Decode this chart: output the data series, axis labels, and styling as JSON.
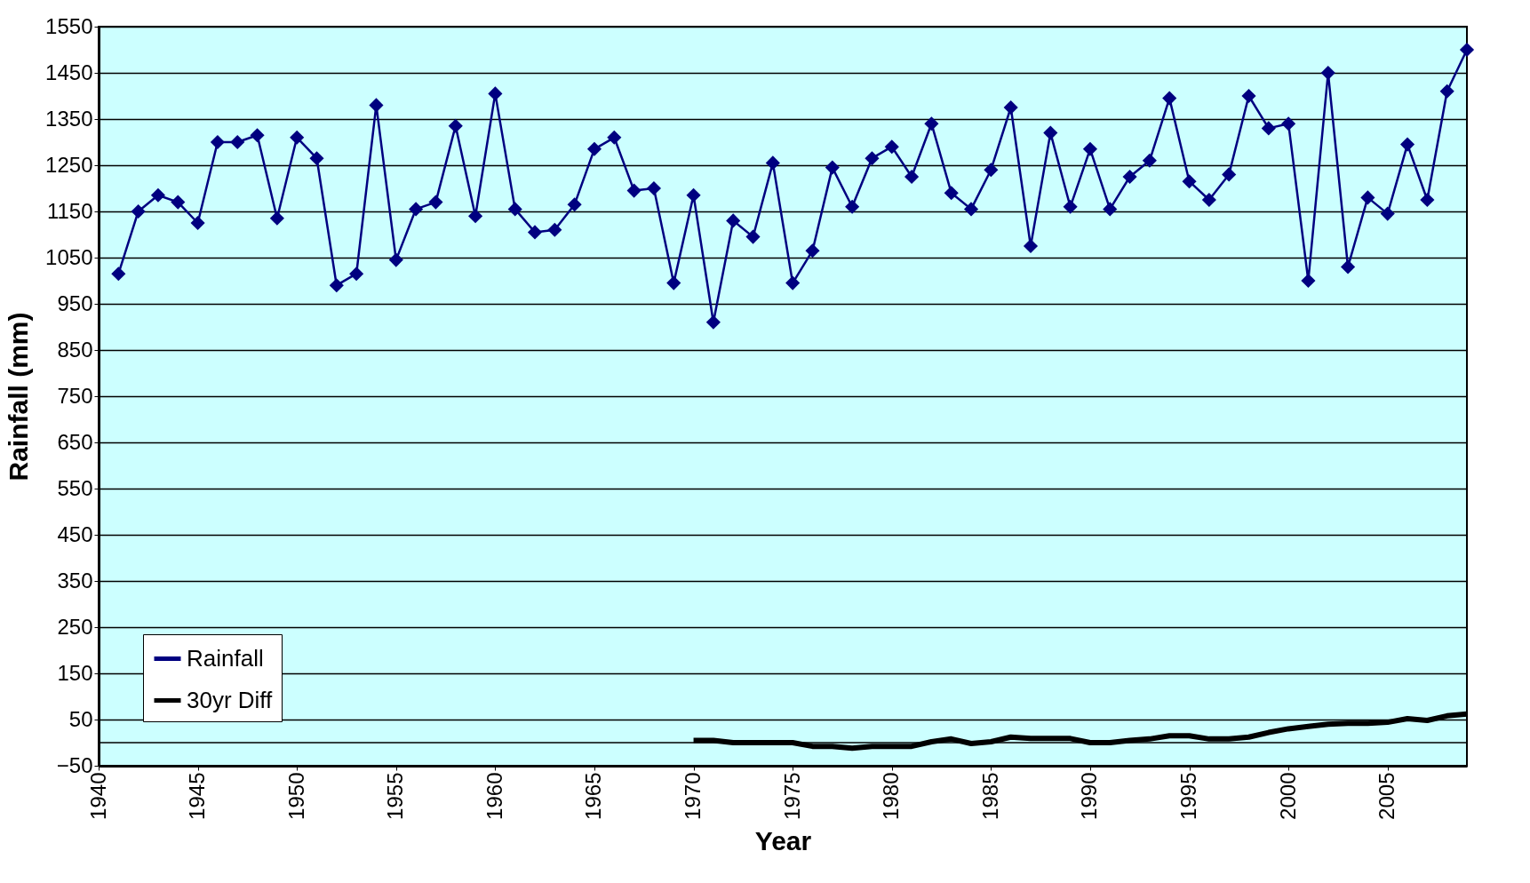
{
  "chart_data": {
    "type": "line",
    "xlabel": "Year",
    "ylabel": "Rainfall (mm)",
    "xlim": [
      1940,
      2009
    ],
    "xticks": [
      1940,
      1945,
      1950,
      1955,
      1960,
      1965,
      1970,
      1975,
      1980,
      1985,
      1990,
      1995,
      2000,
      2005
    ],
    "ylim": [
      -50,
      1550
    ],
    "yticks": [
      -50,
      50,
      150,
      250,
      350,
      450,
      550,
      650,
      750,
      850,
      950,
      1050,
      1150,
      1250,
      1350,
      1450,
      1550
    ],
    "grid": "y",
    "legend": "bottom left",
    "ref_lines": [
      {
        "axis": "y",
        "value": 0
      }
    ],
    "series": [
      {
        "name": "Rainfall",
        "color": "#000080",
        "marker": "diamond",
        "x": [
          1941,
          1942,
          1943,
          1944,
          1945,
          1946,
          1947,
          1948,
          1949,
          1950,
          1951,
          1952,
          1953,
          1954,
          1955,
          1956,
          1957,
          1958,
          1959,
          1960,
          1961,
          1962,
          1963,
          1964,
          1965,
          1966,
          1967,
          1968,
          1969,
          1970,
          1971,
          1972,
          1973,
          1974,
          1975,
          1976,
          1977,
          1978,
          1979,
          1980,
          1981,
          1982,
          1983,
          1984,
          1985,
          1986,
          1987,
          1988,
          1989,
          1990,
          1991,
          1992,
          1993,
          1994,
          1995,
          1996,
          1997,
          1998,
          1999,
          2000,
          2001,
          2002,
          2003,
          2004,
          2005,
          2006,
          2007,
          2008,
          2009
        ],
        "values": [
          1015,
          1150,
          1185,
          1170,
          1125,
          1300,
          1300,
          1315,
          1135,
          1310,
          1265,
          990,
          1015,
          1380,
          1045,
          1155,
          1170,
          1335,
          1140,
          1405,
          1155,
          1105,
          1110,
          1165,
          1285,
          1310,
          1195,
          1200,
          995,
          1185,
          910,
          1130,
          1095,
          1255,
          995,
          1065,
          1245,
          1160,
          1265,
          1290,
          1225,
          1340,
          1190,
          1155,
          1240,
          1375,
          1075,
          1320,
          1160,
          1285,
          1155,
          1225,
          1260,
          1395,
          1215,
          1175,
          1230,
          1400,
          1330,
          1340,
          1000,
          1450,
          1030,
          1180,
          1145,
          1295,
          1175,
          1410,
          1500
        ]
      },
      {
        "name": "30yr Diff",
        "color": "#000000",
        "marker": "none",
        "x": [
          1970,
          1971,
          1972,
          1973,
          1974,
          1975,
          1976,
          1977,
          1978,
          1979,
          1980,
          1981,
          1982,
          1983,
          1984,
          1985,
          1986,
          1987,
          1988,
          1989,
          1990,
          1991,
          1992,
          1993,
          1994,
          1995,
          1996,
          1997,
          1998,
          1999,
          2000,
          2001,
          2002,
          2003,
          2004,
          2005,
          2006,
          2007,
          2008,
          2009
        ],
        "values": [
          5,
          5,
          0,
          0,
          0,
          0,
          -8,
          -8,
          -12,
          -8,
          -8,
          -8,
          2,
          8,
          -2,
          2,
          12,
          9,
          9,
          9,
          0,
          0,
          5,
          8,
          15,
          15,
          8,
          8,
          12,
          22,
          30,
          35,
          40,
          42,
          42,
          44,
          52,
          48,
          58,
          62
        ]
      }
    ]
  }
}
